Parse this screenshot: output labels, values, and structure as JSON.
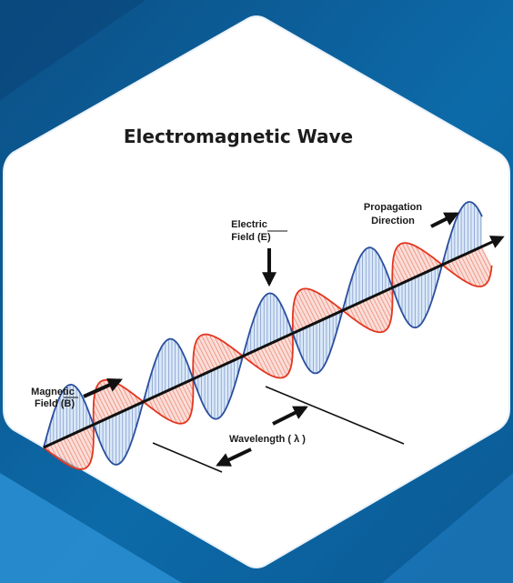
{
  "title": "Electromagnetic Wave",
  "labels": {
    "electric_line1": "Electric",
    "electric_line2": "Field (E)",
    "magnetic_line1": "Magnetic",
    "magnetic_line2": "Field (B)",
    "propagation_line1": "Propagation",
    "propagation_line2": "Direction",
    "wavelength": "Wavelength ( λ )"
  },
  "colors": {
    "background_dark": "#0a5f97",
    "background_light": "#2d8fd0",
    "panel": "#ffffff",
    "electric_field": "#2a4f9e",
    "electric_fill": "#bcd6f2",
    "magnetic_field": "#e3361f",
    "magnetic_fill": "#f6c1b6",
    "axis": "#111111"
  }
}
